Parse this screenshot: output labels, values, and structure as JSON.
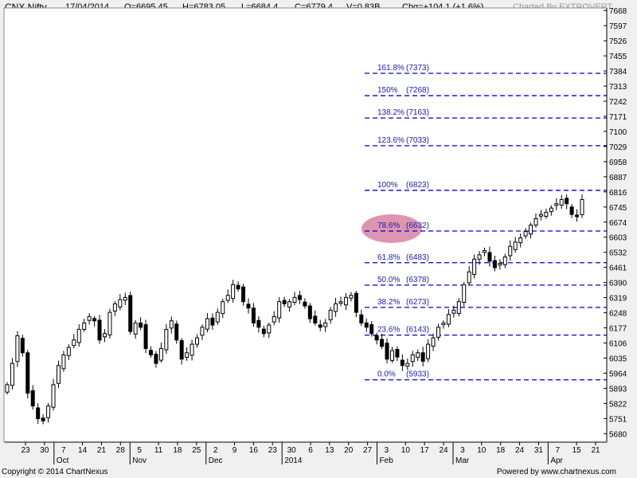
{
  "header": {
    "symbol": "CNX Nifty",
    "date": "17/04/2014",
    "open": "O=6695.45",
    "high": "H=6783.05",
    "low": "L=6684.4",
    "close": "C=6779.4",
    "volume": "V=0.83B",
    "change": "Chg=+104.1 (+1.6%)",
    "credit": "Charted By EXTROVERT"
  },
  "footer": {
    "copyright": "Copyright © 2014 ChartNexus",
    "powered": "Powered by www.chartnexus.com"
  },
  "colors": {
    "background": "#ffffff",
    "fib_line": "#0000cc",
    "fib_label": "#1a1aaa",
    "highlight": "#d98aa8",
    "candle": "#000000"
  },
  "chart_data": {
    "type": "candlestick",
    "title": "CNX Nifty",
    "ylim": [
      5640,
      7680
    ],
    "y_ticks": [
      "7668",
      "7597",
      "7526",
      "7455",
      "7384",
      "7313",
      "7242",
      "7171",
      "7100",
      "7029",
      "6958",
      "6887",
      "6816",
      "6745",
      "6674",
      "6603",
      "6532",
      "6461",
      "6390",
      "6319",
      "6248",
      "6177",
      "6106",
      "6035",
      "5964",
      "5893",
      "5822",
      "5751",
      "5680"
    ],
    "x_tick_labels": [
      "23",
      "30",
      "7",
      "14",
      "21",
      "28",
      "5",
      "11",
      "18",
      "25",
      "2",
      "9",
      "16",
      "23",
      "30",
      "6",
      "13",
      "20",
      "27",
      "3",
      "10",
      "17",
      "24",
      "3",
      "10",
      "18",
      "24",
      "31",
      "7",
      "15",
      "21"
    ],
    "month_labels": [
      "Oct",
      "Nov",
      "Dec",
      "2014",
      "Feb",
      "Mar",
      "Apr"
    ],
    "fibonacci_levels": [
      {
        "label": "161.8%",
        "value_label": "(7373)",
        "value": 7373
      },
      {
        "label": "150%",
        "value_label": "(7268)",
        "value": 7268
      },
      {
        "label": "138.2%",
        "value_label": "(7163)",
        "value": 7163
      },
      {
        "label": "123.6%",
        "value_label": "(7033)",
        "value": 7033
      },
      {
        "label": "100%",
        "value_label": "(6823)",
        "value": 6823
      },
      {
        "label": "78.6%",
        "value_label": "(6632)",
        "value": 6632
      },
      {
        "label": "61.8%",
        "value_label": "(6483)",
        "value": 6483
      },
      {
        "label": "50.0%",
        "value_label": "(6378)",
        "value": 6378
      },
      {
        "label": "38.2%",
        "value_label": "(6273)",
        "value": 6273
      },
      {
        "label": "23.6%",
        "value_label": "(6143)",
        "value": 6143
      },
      {
        "label": "0.0%",
        "value_label": "(5933)",
        "value": 5933
      }
    ],
    "highlighted_level": "78.6%",
    "closes": [
      5910,
      6010,
      6140,
      6060,
      5870,
      5810,
      5750,
      5740,
      5810,
      5910,
      6000,
      6050,
      6085,
      6120,
      6170,
      6200,
      6230,
      6210,
      6120,
      6150,
      6250,
      6290,
      6310,
      6320,
      6160,
      6200,
      6180,
      6080,
      6050,
      6010,
      6080,
      6170,
      6210,
      6120,
      6030,
      6060,
      6100,
      6130,
      6180,
      6220,
      6190,
      6250,
      6300,
      6330,
      6380,
      6360,
      6300,
      6270,
      6200,
      6180,
      6150,
      6190,
      6230,
      6300,
      6290,
      6300,
      6320,
      6310,
      6280,
      6220,
      6200,
      6180,
      6200,
      6260,
      6290,
      6300,
      6320,
      6330,
      6250,
      6200,
      6180,
      6150,
      6120,
      6090,
      6030,
      6070,
      6040,
      6000,
      6010,
      6050,
      6060,
      6020,
      6100,
      6130,
      6180,
      6200,
      6240,
      6260,
      6300,
      6380,
      6440,
      6500,
      6520,
      6540,
      6490,
      6460,
      6480,
      6510,
      6560,
      6580,
      6600,
      6630,
      6660,
      6690,
      6710,
      6720,
      6740,
      6760,
      6780,
      6760,
      6710,
      6700,
      6780
    ]
  }
}
